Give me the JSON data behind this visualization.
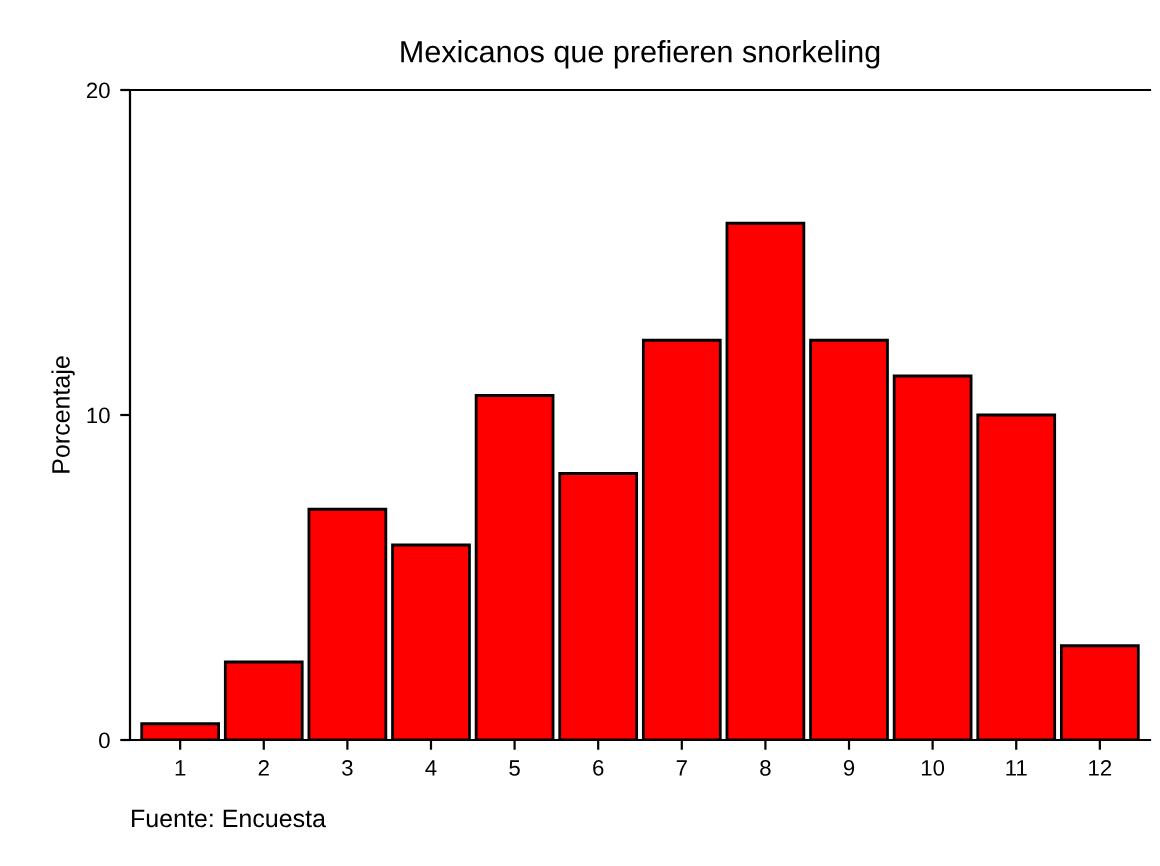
{
  "chart_data": {
    "type": "bar",
    "title": "Mexicanos que prefieren snorkeling",
    "ylabel": "Porcentaje",
    "categories": [
      "1",
      "2",
      "3",
      "4",
      "5",
      "6",
      "7",
      "8",
      "9",
      "10",
      "11",
      "12"
    ],
    "values": [
      0.5,
      2.4,
      7.1,
      6.0,
      10.6,
      8.2,
      12.3,
      15.9,
      12.3,
      11.2,
      10.0,
      2.9
    ],
    "color": "#ff0000",
    "ylim": [
      0,
      20
    ],
    "yticks": [
      0,
      10,
      20
    ],
    "grid": false,
    "annotations": [
      "Fuente: Encuesta"
    ]
  }
}
